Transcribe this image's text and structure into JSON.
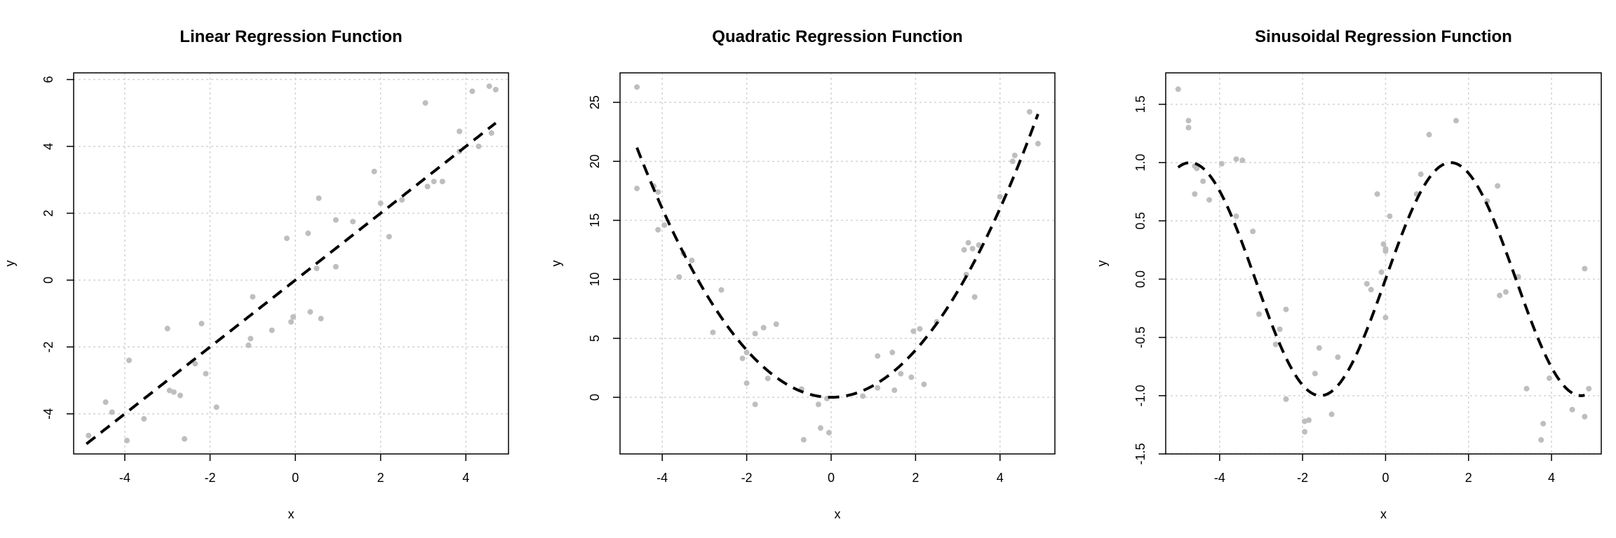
{
  "chart_data": [
    {
      "type": "scatter",
      "title": "Linear Regression Function",
      "xlabel": "x",
      "ylabel": "y",
      "xlim": [
        -5.2,
        5.0
      ],
      "ylim": [
        -5.2,
        6.2
      ],
      "xticks": [
        -4,
        -2,
        0,
        2,
        4
      ],
      "yticks": [
        -4,
        -2,
        0,
        2,
        4,
        6
      ],
      "grid": true,
      "curve": {
        "style": "dashed",
        "color": "#000000",
        "equation": "y = x",
        "x_range": [
          -4.9,
          4.7
        ]
      },
      "series": [
        {
          "color": "#bebebe",
          "points": [
            [
              -4.85,
              -4.65
            ],
            [
              -4.45,
              -3.65
            ],
            [
              -4.3,
              -3.95
            ],
            [
              -3.95,
              -4.8
            ],
            [
              -3.9,
              -2.4
            ],
            [
              -3.55,
              -4.15
            ],
            [
              -3.0,
              -1.45
            ],
            [
              -2.95,
              -3.3
            ],
            [
              -2.85,
              -3.35
            ],
            [
              -2.7,
              -3.45
            ],
            [
              -2.6,
              -4.75
            ],
            [
              -2.35,
              -2.5
            ],
            [
              -2.2,
              -1.3
            ],
            [
              -2.1,
              -2.8
            ],
            [
              -1.85,
              -3.8
            ],
            [
              -1.1,
              -1.95
            ],
            [
              -1.05,
              -1.75
            ],
            [
              -1.0,
              -0.5
            ],
            [
              -0.55,
              -1.5
            ],
            [
              -0.2,
              1.25
            ],
            [
              -0.1,
              -1.25
            ],
            [
              -0.05,
              -1.1
            ],
            [
              0.3,
              1.4
            ],
            [
              0.35,
              -0.95
            ],
            [
              0.5,
              0.35
            ],
            [
              0.55,
              2.45
            ],
            [
              0.6,
              -1.15
            ],
            [
              0.95,
              1.8
            ],
            [
              0.95,
              0.4
            ],
            [
              1.35,
              1.75
            ],
            [
              1.85,
              3.25
            ],
            [
              2.0,
              2.3
            ],
            [
              2.2,
              1.3
            ],
            [
              2.5,
              2.4
            ],
            [
              3.05,
              5.3
            ],
            [
              3.1,
              2.8
            ],
            [
              3.25,
              2.95
            ],
            [
              3.45,
              2.95
            ],
            [
              3.85,
              4.45
            ],
            [
              3.85,
              3.85
            ],
            [
              4.15,
              5.65
            ],
            [
              4.3,
              4.0
            ],
            [
              4.55,
              5.8
            ],
            [
              4.6,
              4.4
            ],
            [
              4.7,
              5.7
            ]
          ]
        }
      ]
    },
    {
      "type": "scatter",
      "title": "Quadratic Regression Function",
      "xlabel": "x",
      "ylabel": "y",
      "xlim": [
        -5.0,
        5.3
      ],
      "ylim": [
        -4.8,
        27.5
      ],
      "xticks": [
        -4,
        -2,
        0,
        2,
        4
      ],
      "yticks": [
        0,
        5,
        10,
        15,
        20,
        25
      ],
      "grid": true,
      "curve": {
        "style": "dashed",
        "color": "#000000",
        "equation": "y = x^2",
        "x_range": [
          -4.6,
          4.9
        ]
      },
      "series": [
        {
          "color": "#bebebe",
          "points": [
            [
              -4.6,
              26.3
            ],
            [
              -4.6,
              17.7
            ],
            [
              -4.2,
              17.9
            ],
            [
              -4.1,
              17.4
            ],
            [
              -4.1,
              14.2
            ],
            [
              -3.95,
              14.6
            ],
            [
              -3.5,
              12.2
            ],
            [
              -3.6,
              10.2
            ],
            [
              -3.3,
              11.6
            ],
            [
              -2.6,
              9.1
            ],
            [
              -2.8,
              5.5
            ],
            [
              -2.1,
              3.3
            ],
            [
              -2.0,
              3.8
            ],
            [
              -2.0,
              1.2
            ],
            [
              -1.8,
              5.4
            ],
            [
              -1.8,
              -0.6
            ],
            [
              -1.6,
              5.9
            ],
            [
              -1.5,
              1.6
            ],
            [
              -1.3,
              6.2
            ],
            [
              -0.7,
              0.7
            ],
            [
              -0.65,
              -3.6
            ],
            [
              -0.3,
              -0.6
            ],
            [
              -0.25,
              -2.6
            ],
            [
              -0.1,
              -0.1
            ],
            [
              -0.05,
              -3.0
            ],
            [
              0.75,
              0.1
            ],
            [
              1.1,
              3.5
            ],
            [
              1.1,
              0.8
            ],
            [
              1.45,
              3.8
            ],
            [
              1.5,
              0.6
            ],
            [
              1.65,
              2.0
            ],
            [
              1.9,
              1.7
            ],
            [
              1.95,
              5.6
            ],
            [
              2.1,
              5.8
            ],
            [
              2.2,
              1.1
            ],
            [
              2.5,
              6.4
            ],
            [
              3.15,
              12.5
            ],
            [
              3.2,
              10.4
            ],
            [
              3.25,
              13.1
            ],
            [
              3.35,
              12.6
            ],
            [
              3.4,
              8.5
            ],
            [
              3.5,
              12.9
            ],
            [
              4.0,
              17.0
            ],
            [
              4.3,
              20.0
            ],
            [
              4.35,
              20.5
            ],
            [
              4.7,
              24.2
            ],
            [
              4.9,
              21.5
            ]
          ]
        }
      ]
    },
    {
      "type": "scatter",
      "title": "Sinusoidal Regression Function",
      "xlabel": "x",
      "ylabel": "y",
      "xlim": [
        -5.3,
        5.2
      ],
      "ylim": [
        -1.5,
        1.77
      ],
      "xticks": [
        -4,
        -2,
        0,
        2,
        4
      ],
      "yticks": [
        -1.5,
        -1.0,
        -0.5,
        0.0,
        0.5,
        1.0,
        1.5
      ],
      "ytick_labels": [
        "-1.5",
        "-1.0",
        "-0.5",
        "0.0",
        "0.5",
        "1.0",
        "1.5"
      ],
      "grid": true,
      "curve": {
        "style": "dashed",
        "color": "#000000",
        "equation": "y = sin(x)",
        "x_range": [
          -5.0,
          4.8
        ]
      },
      "series": [
        {
          "color": "#bebebe",
          "points": [
            [
              -5.0,
              1.63
            ],
            [
              -4.75,
              1.3
            ],
            [
              -4.75,
              1.36
            ],
            [
              -4.6,
              0.97
            ],
            [
              -4.55,
              0.95
            ],
            [
              -4.6,
              0.73
            ],
            [
              -4.4,
              0.84
            ],
            [
              -4.25,
              0.68
            ],
            [
              -3.95,
              0.99
            ],
            [
              -3.6,
              1.03
            ],
            [
              -3.45,
              1.02
            ],
            [
              -3.6,
              0.54
            ],
            [
              -3.2,
              0.41
            ],
            [
              -3.05,
              -0.3
            ],
            [
              -2.65,
              -0.56
            ],
            [
              -2.55,
              -0.43
            ],
            [
              -2.4,
              -1.03
            ],
            [
              -2.4,
              -0.26
            ],
            [
              -1.95,
              -1.22
            ],
            [
              -1.95,
              -1.31
            ],
            [
              -1.85,
              -1.21
            ],
            [
              -1.7,
              -0.81
            ],
            [
              -1.6,
              -0.59
            ],
            [
              -1.3,
              -1.16
            ],
            [
              -1.15,
              -0.67
            ],
            [
              -0.45,
              -0.04
            ],
            [
              -0.35,
              -0.09
            ],
            [
              -0.2,
              0.73
            ],
            [
              -0.1,
              0.06
            ],
            [
              -0.05,
              0.3
            ],
            [
              0.0,
              0.26
            ],
            [
              0.0,
              0.24
            ],
            [
              0.0,
              -0.33
            ],
            [
              0.1,
              0.54
            ],
            [
              0.75,
              0.73
            ],
            [
              0.85,
              0.9
            ],
            [
              1.05,
              1.24
            ],
            [
              1.7,
              1.36
            ],
            [
              2.45,
              0.67
            ],
            [
              2.7,
              0.8
            ],
            [
              2.75,
              -0.14
            ],
            [
              2.9,
              -0.11
            ],
            [
              3.2,
              0.02
            ],
            [
              3.4,
              -0.94
            ],
            [
              3.75,
              -1.38
            ],
            [
              3.8,
              -1.24
            ],
            [
              3.95,
              -0.85
            ],
            [
              4.5,
              -1.12
            ],
            [
              4.8,
              0.09
            ],
            [
              4.8,
              -1.18
            ],
            [
              4.9,
              -0.94
            ]
          ]
        }
      ]
    }
  ]
}
